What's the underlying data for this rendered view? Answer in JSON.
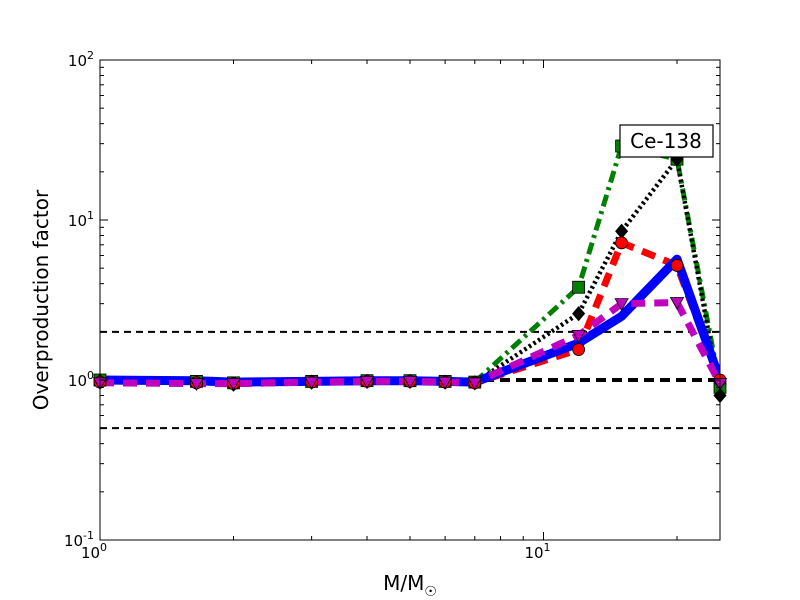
{
  "chart_data": {
    "type": "line",
    "xlabel": "M/M",
    "xlabel_sub": "☉",
    "ylabel": "Overproduction factor",
    "xscale": "log",
    "yscale": "log",
    "xlim": [
      1,
      25
    ],
    "ylim": [
      0.1,
      100
    ],
    "x_ticks": [
      {
        "base": "10",
        "exp": "0",
        "value": 1
      },
      {
        "base": "10",
        "exp": "1",
        "value": 10
      }
    ],
    "y_ticks": [
      {
        "base": "10",
        "exp": "-1",
        "value": 0.1
      },
      {
        "base": "10",
        "exp": "0",
        "value": 1
      },
      {
        "base": "10",
        "exp": "1",
        "value": 10
      },
      {
        "base": "10",
        "exp": "2",
        "value": 100
      }
    ],
    "annotation": "Ce-138",
    "reference_lines": [
      {
        "y": 2.0,
        "style": "dashed",
        "color": "#000000"
      },
      {
        "y": 1.0,
        "style": "dashed-thick",
        "color": "#000000"
      },
      {
        "y": 0.5,
        "style": "dashed",
        "color": "#000000"
      }
    ],
    "series": [
      {
        "color": "#008000",
        "line_style": "dashdot",
        "marker": "square",
        "x": [
          1,
          1.65,
          2,
          3,
          4,
          5,
          6,
          7,
          12,
          15,
          20,
          25
        ],
        "y": [
          1.0,
          0.98,
          0.96,
          0.98,
          0.99,
          0.99,
          0.98,
          0.97,
          3.8,
          29,
          24,
          0.9
        ]
      },
      {
        "color": "#000000",
        "line_style": "dotted",
        "marker": "diamond",
        "x": [
          1,
          1.65,
          2,
          3,
          4,
          5,
          6,
          7,
          12,
          15,
          20,
          25
        ],
        "y": [
          0.98,
          0.96,
          0.94,
          0.97,
          0.98,
          0.98,
          0.97,
          0.96,
          2.6,
          8.5,
          24,
          0.8
        ]
      },
      {
        "color": "#ff0000",
        "line_style": "dashed",
        "marker": "circle",
        "x": [
          1,
          1.65,
          2,
          3,
          4,
          5,
          6,
          7,
          12,
          15,
          20,
          25
        ],
        "y": [
          0.97,
          0.96,
          0.95,
          0.97,
          0.98,
          0.98,
          0.97,
          0.96,
          1.55,
          7.2,
          5.2,
          1.0
        ]
      },
      {
        "color": "#0000ff",
        "line_style": "solid",
        "marker": "none",
        "x": [
          1,
          1.65,
          2,
          3,
          4,
          5,
          6,
          7,
          12,
          15,
          20,
          25
        ],
        "y": [
          1.0,
          0.99,
          0.97,
          0.98,
          0.99,
          0.99,
          0.98,
          0.97,
          1.7,
          2.5,
          5.7,
          1.0
        ]
      },
      {
        "color": "#bf00bf",
        "line_style": "dashed",
        "marker": "triangle-down",
        "x": [
          1,
          1.65,
          2,
          3,
          4,
          5,
          6,
          7,
          12,
          15,
          20,
          25
        ],
        "y": [
          0.96,
          0.95,
          0.95,
          0.97,
          0.98,
          0.98,
          0.97,
          0.96,
          1.9,
          3.0,
          3.05,
          0.95
        ]
      }
    ]
  }
}
